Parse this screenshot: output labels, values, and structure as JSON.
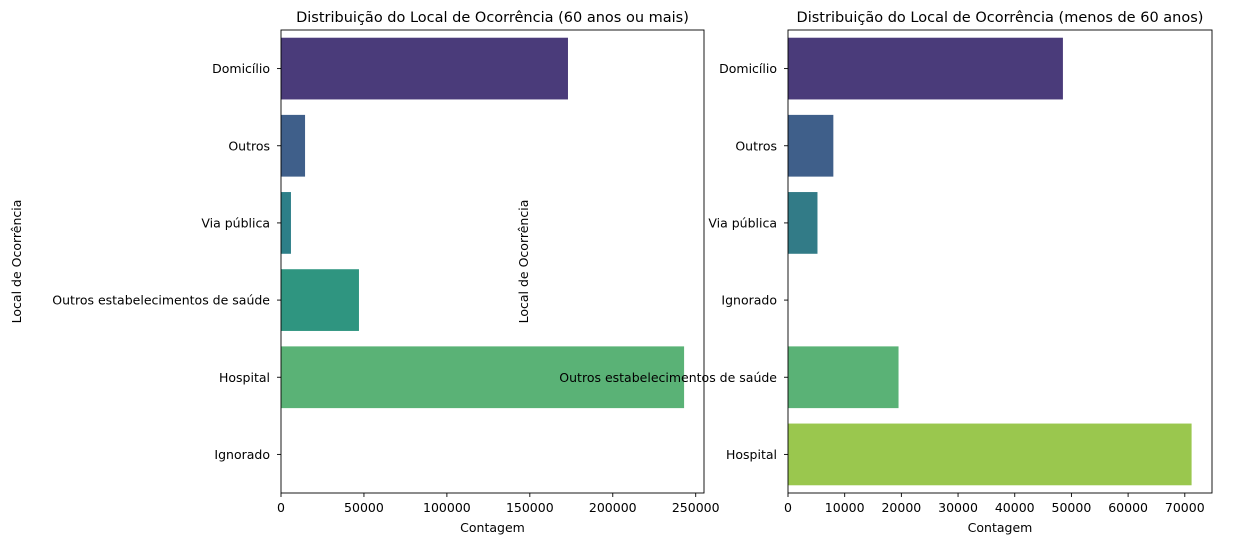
{
  "chart_data": [
    {
      "type": "bar",
      "orientation": "horizontal",
      "title": "Distribuição do Local de Ocorrência (60 anos ou mais)",
      "xlabel": "Contagem",
      "ylabel": "Local de Ocorrência",
      "categories": [
        "Domicílio",
        "Outros",
        "Via pública",
        "Outros estabelecimentos de saúde",
        "Hospital",
        "Ignorado"
      ],
      "values": [
        173000,
        14500,
        6000,
        47000,
        243000,
        0
      ],
      "colors": [
        "#4a3b7a",
        "#3f5f8a",
        "#2d7f88",
        "#2f9580",
        "#5ab276",
        "#a0d34a"
      ],
      "xlim": [
        0,
        255000
      ],
      "xticks": [
        0,
        50000,
        100000,
        150000,
        200000,
        250000
      ],
      "xtick_labels": [
        "0",
        "50000",
        "100000",
        "150000",
        "200000",
        "250000"
      ],
      "grid": false
    },
    {
      "type": "bar",
      "orientation": "horizontal",
      "title": "Distribuição do Local de Ocorrência (menos de 60 anos)",
      "xlabel": "Contagem",
      "ylabel": "Local de Ocorrência",
      "categories": [
        "Domicílio",
        "Outros",
        "Via pública",
        "Ignorado",
        "Outros estabelecimentos de saúde",
        "Hospital"
      ],
      "values": [
        48500,
        8000,
        5200,
        0,
        19500,
        71200
      ],
      "colors": [
        "#4a3b7a",
        "#3f5f8a",
        "#327b87",
        "#2a9081",
        "#5ab276",
        "#9ac74e"
      ],
      "xlim": [
        0,
        74800
      ],
      "xticks": [
        0,
        10000,
        20000,
        30000,
        40000,
        50000,
        60000,
        70000
      ],
      "xtick_labels": [
        "0",
        "10000",
        "20000",
        "30000",
        "40000",
        "50000",
        "60000",
        "70000"
      ],
      "grid": false
    }
  ]
}
